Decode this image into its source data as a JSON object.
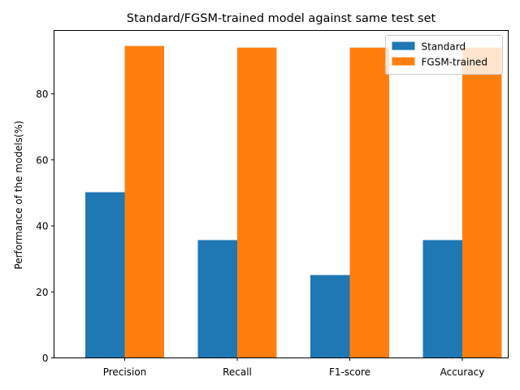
{
  "chart_data": {
    "type": "bar",
    "title": "Standard/FGSM-trained model against same test set",
    "xlabel": "",
    "ylabel": "Performance of the models(%)",
    "categories": [
      "Precision",
      "Recall",
      "F1-score",
      "Accuracy"
    ],
    "series": [
      {
        "name": "Standard",
        "values": [
          50.2,
          35.7,
          25.1,
          35.7
        ],
        "color": "#1f77b4"
      },
      {
        "name": "FGSM-trained",
        "values": [
          94.5,
          94.0,
          94.0,
          94.0
        ],
        "color": "#ff7f0e"
      }
    ],
    "ylim": [
      0,
      99.2
    ],
    "yticks": [
      "0",
      "20",
      "40",
      "60",
      "80"
    ],
    "grid": false,
    "legend_position": "top-right"
  }
}
